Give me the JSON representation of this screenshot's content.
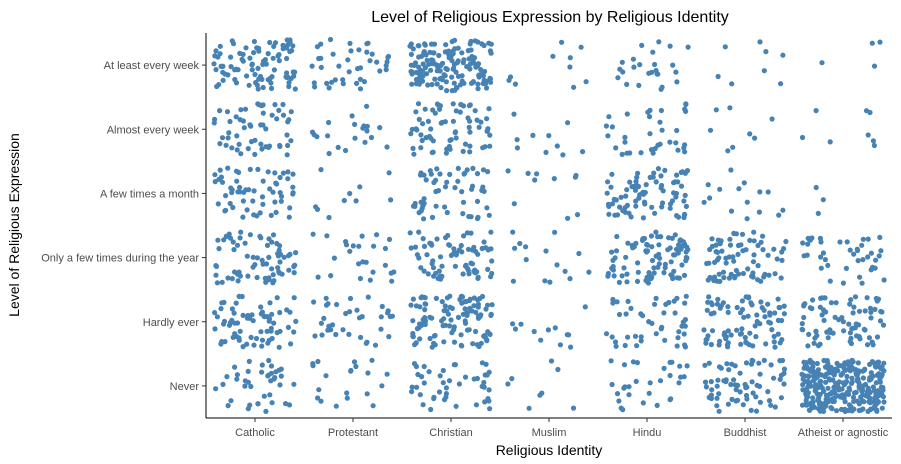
{
  "chart_data": {
    "type": "scatter",
    "subtype": "jitter",
    "title": "Level of Religious Expression by Religious Identity",
    "xlabel": "Religious Identity",
    "ylabel": "Level of Religious Expression",
    "x_categories": [
      "Catholic",
      "Protestant",
      "Christian",
      "Muslim",
      "Hindu",
      "Buddhist",
      "Atheist or agnostic"
    ],
    "y_categories": [
      "Never",
      "Hardly ever",
      "Only a few times during the year",
      "A few times a month",
      "Almost every week",
      "At least every week"
    ],
    "grid": false,
    "point_color": "#4682b4",
    "approx_point_counts": {
      "Catholic": [
        40,
        70,
        70,
        60,
        55,
        90
      ],
      "Protestant": [
        20,
        35,
        25,
        10,
        20,
        40
      ],
      "Christian": [
        45,
        110,
        75,
        55,
        70,
        150
      ],
      "Muslim": [
        8,
        12,
        15,
        10,
        10,
        10
      ],
      "Hindu": [
        30,
        45,
        90,
        80,
        35,
        25
      ],
      "Buddhist": [
        70,
        85,
        75,
        15,
        8,
        8
      ],
      "Atheist or agnostic": [
        300,
        80,
        40,
        3,
        8,
        4
      ]
    }
  }
}
